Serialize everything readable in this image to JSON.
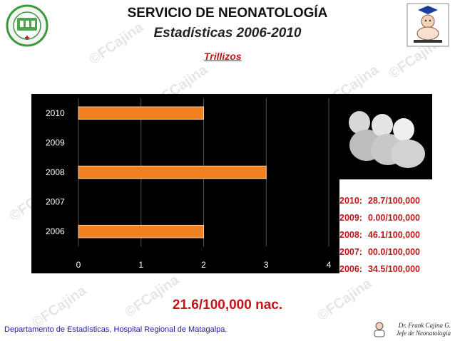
{
  "header": {
    "title": "SERVICIO DE NEONATOLOGÍA",
    "subtitle": "Estadísticas 2006-2010",
    "section": "Trillizos"
  },
  "watermark": "©FCajina",
  "chart_data": {
    "type": "bar",
    "orientation": "horizontal",
    "categories": [
      "2006",
      "2007",
      "2008",
      "2009",
      "2010"
    ],
    "values": [
      2,
      0,
      3,
      0,
      2
    ],
    "xlim": [
      0,
      4
    ],
    "xticks": [
      "0",
      "1",
      "2",
      "3",
      "4"
    ],
    "grid": true,
    "bar_color": "#f08020",
    "background": "#000000",
    "title": "",
    "xlabel": "",
    "ylabel": ""
  },
  "rates": [
    {
      "year": "2010:",
      "value": "28.7/100,000"
    },
    {
      "year": "2009:",
      "value": "0.00/100,000"
    },
    {
      "year": "2008:",
      "value": "46.1/100,000"
    },
    {
      "year": "2007:",
      "value": "00.0/100,000"
    },
    {
      "year": "2006:",
      "value": "34.5/100,000"
    }
  ],
  "total": "21.6/100,000 nac.",
  "footer": "Departamento de Estadísticas, Hospital Regional de Matagalpa.",
  "signature": {
    "name": "Dr. Frank Cajina G.",
    "role": "Jefe de Neonatología"
  },
  "colors": {
    "accent": "#c0161a",
    "footer_text": "#1a1aa6"
  },
  "icons": [
    "hospital-seal-logo",
    "neonatology-service-logo",
    "triplets-photo"
  ]
}
